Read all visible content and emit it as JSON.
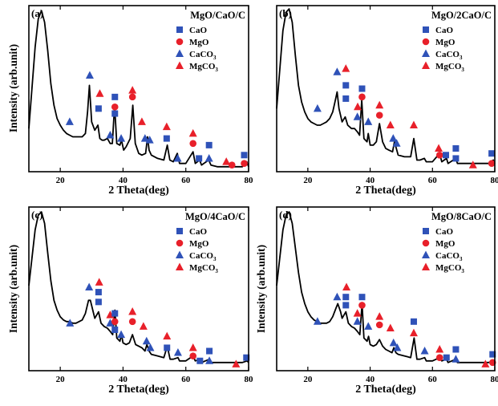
{
  "colors": {
    "CaO": "#2f52b8",
    "MgO": "#e8202a",
    "CaCO3": "#2f52b8",
    "MgCO3": "#e8202a",
    "curve": "#000000"
  },
  "legend": [
    {
      "name": "CaO",
      "sub": "",
      "marker": "square",
      "colorKey": "CaO"
    },
    {
      "name": "MgO",
      "sub": "",
      "marker": "circle",
      "colorKey": "MgO"
    },
    {
      "name": "CaCO",
      "sub": "3",
      "marker": "triangle",
      "colorKey": "CaCO3"
    },
    {
      "name": "MgCO",
      "sub": "3",
      "marker": "triangle",
      "colorKey": "MgCO3"
    }
  ],
  "chart_data": [
    {
      "type": "line",
      "panel": "(a)",
      "title": "MgO/CaO/C",
      "xlabel": "2 Theta(deg)",
      "ylabel": "Intensity (arb.unit)",
      "xlim": [
        10,
        80
      ],
      "ylim": [
        0,
        1
      ],
      "xticks": [
        20,
        40,
        60,
        80
      ],
      "curve": {
        "x": [
          10,
          12,
          13,
          14,
          15,
          16,
          17,
          18,
          19,
          20,
          21,
          22,
          23,
          24,
          25,
          26,
          27,
          28,
          28.7,
          29.3,
          30,
          31,
          32,
          32.6,
          33.3,
          34,
          35,
          35.9,
          36.6,
          37.3,
          38,
          39,
          39.5,
          40.2,
          41,
          42.3,
          43.1,
          43.9,
          45,
          46,
          47.2,
          47.8,
          48.3,
          49,
          51,
          53,
          54.1,
          54.9,
          56,
          57.3,
          58,
          60,
          62.3,
          63,
          64.4,
          65,
          67.3,
          68,
          70,
          72,
          74,
          76,
          78,
          79.4,
          80
        ],
        "y": [
          0.26,
          0.75,
          0.92,
          0.97,
          0.9,
          0.73,
          0.53,
          0.4,
          0.32,
          0.28,
          0.25,
          0.23,
          0.22,
          0.21,
          0.21,
          0.21,
          0.21,
          0.23,
          0.36,
          0.52,
          0.3,
          0.25,
          0.28,
          0.2,
          0.19,
          0.19,
          0.2,
          0.17,
          0.17,
          0.4,
          0.17,
          0.16,
          0.19,
          0.13,
          0.15,
          0.2,
          0.4,
          0.17,
          0.11,
          0.1,
          0.11,
          0.21,
          0.13,
          0.1,
          0.08,
          0.07,
          0.16,
          0.07,
          0.06,
          0.11,
          0.05,
          0.05,
          0.12,
          0.05,
          0.07,
          0.04,
          0.07,
          0.04,
          0.03,
          0.03,
          0.03,
          0.03,
          0.03,
          0.06,
          0.03
        ]
      },
      "markers": [
        {
          "phase": "CaCO3",
          "x": 23.0,
          "y": 0.3
        },
        {
          "phase": "CaCO3",
          "x": 29.4,
          "y": 0.58
        },
        {
          "phase": "CaO",
          "x": 32.2,
          "y": 0.38
        },
        {
          "phase": "MgCO3",
          "x": 32.6,
          "y": 0.47
        },
        {
          "phase": "CaCO3",
          "x": 35.9,
          "y": 0.22
        },
        {
          "phase": "CaO",
          "x": 37.4,
          "y": 0.35
        },
        {
          "phase": "MgO",
          "x": 37.4,
          "y": 0.39
        },
        {
          "phase": "CaO",
          "x": 37.4,
          "y": 0.45
        },
        {
          "phase": "CaCO3",
          "x": 39.4,
          "y": 0.2
        },
        {
          "phase": "MgO",
          "x": 43.0,
          "y": 0.45
        },
        {
          "phase": "MgCO3",
          "x": 43.0,
          "y": 0.49
        },
        {
          "phase": "MgCO3",
          "x": 46.0,
          "y": 0.3
        },
        {
          "phase": "CaCO3",
          "x": 47.0,
          "y": 0.2
        },
        {
          "phase": "CaCO3",
          "x": 48.5,
          "y": 0.19
        },
        {
          "phase": "CaO",
          "x": 53.9,
          "y": 0.2
        },
        {
          "phase": "MgCO3",
          "x": 53.9,
          "y": 0.27
        },
        {
          "phase": "CaCO3",
          "x": 57.4,
          "y": 0.08
        },
        {
          "phase": "MgO",
          "x": 62.3,
          "y": 0.17
        },
        {
          "phase": "MgCO3",
          "x": 62.3,
          "y": 0.23
        },
        {
          "phase": "CaO",
          "x": 64.2,
          "y": 0.08
        },
        {
          "phase": "CaO",
          "x": 67.4,
          "y": 0.16
        },
        {
          "phase": "CaCO3",
          "x": 67.4,
          "y": 0.08
        },
        {
          "phase": "MgCO3",
          "x": 72.9,
          "y": 0.06
        },
        {
          "phase": "MgO",
          "x": 74.7,
          "y": 0.04
        },
        {
          "phase": "MgO",
          "x": 78.6,
          "y": 0.05
        },
        {
          "phase": "CaO",
          "x": 78.6,
          "y": 0.1
        }
      ]
    },
    {
      "type": "line",
      "panel": "(b)",
      "title": "MgO/2CaO/C",
      "xlabel": "2 Theta(deg)",
      "ylabel": "",
      "xlim": [
        10,
        80
      ],
      "ylim": [
        0,
        1
      ],
      "xticks": [
        20,
        40,
        60,
        80
      ],
      "curve": {
        "x": [
          10,
          12,
          13,
          14,
          15,
          16,
          17,
          18,
          19,
          20,
          21,
          22,
          23,
          24,
          25,
          26,
          27,
          28,
          28.7,
          29.4,
          30,
          31,
          32,
          32.8,
          34,
          35,
          35.9,
          36.6,
          37.3,
          38,
          39,
          39.4,
          40,
          41,
          42,
          43,
          44,
          45,
          46,
          47.2,
          47.8,
          48.4,
          49,
          51,
          53,
          54,
          55,
          56,
          57.4,
          58,
          60,
          62.3,
          63,
          64.5,
          65,
          67.5,
          68,
          70,
          72,
          74,
          76,
          78,
          79.5,
          80
        ],
        "y": [
          0.38,
          0.85,
          0.96,
          0.98,
          0.9,
          0.7,
          0.52,
          0.42,
          0.36,
          0.32,
          0.3,
          0.29,
          0.28,
          0.28,
          0.29,
          0.3,
          0.32,
          0.36,
          0.42,
          0.48,
          0.38,
          0.3,
          0.33,
          0.28,
          0.26,
          0.26,
          0.24,
          0.22,
          0.43,
          0.2,
          0.18,
          0.23,
          0.16,
          0.16,
          0.18,
          0.29,
          0.18,
          0.14,
          0.13,
          0.12,
          0.18,
          0.14,
          0.1,
          0.09,
          0.09,
          0.2,
          0.07,
          0.07,
          0.08,
          0.06,
          0.06,
          0.11,
          0.06,
          0.08,
          0.05,
          0.08,
          0.05,
          0.05,
          0.05,
          0.05,
          0.05,
          0.05,
          0.07,
          0.05
        ]
      },
      "markers": [
        {
          "phase": "CaCO3",
          "x": 23.1,
          "y": 0.38
        },
        {
          "phase": "CaCO3",
          "x": 29.4,
          "y": 0.6
        },
        {
          "phase": "CaO",
          "x": 32.2,
          "y": 0.52
        },
        {
          "phase": "CaO",
          "x": 32.2,
          "y": 0.44
        },
        {
          "phase": "MgCO3",
          "x": 32.2,
          "y": 0.62
        },
        {
          "phase": "CaCO3",
          "x": 35.9,
          "y": 0.33
        },
        {
          "phase": "MgCO3",
          "x": 36.0,
          "y": 0.39
        },
        {
          "phase": "CaO",
          "x": 37.4,
          "y": 0.5
        },
        {
          "phase": "MgO",
          "x": 37.4,
          "y": 0.45
        },
        {
          "phase": "CaCO3",
          "x": 39.4,
          "y": 0.3
        },
        {
          "phase": "MgO",
          "x": 43.0,
          "y": 0.34
        },
        {
          "phase": "MgCO3",
          "x": 43.0,
          "y": 0.4
        },
        {
          "phase": "MgCO3",
          "x": 46.5,
          "y": 0.28
        },
        {
          "phase": "CaCO3",
          "x": 47.4,
          "y": 0.2
        },
        {
          "phase": "CaCO3",
          "x": 48.5,
          "y": 0.17
        },
        {
          "phase": "MgCO3",
          "x": 54.0,
          "y": 0.28
        },
        {
          "phase": "MgCO3",
          "x": 62.0,
          "y": 0.14
        },
        {
          "phase": "MgO",
          "x": 62.3,
          "y": 0.1
        },
        {
          "phase": "CaO",
          "x": 64.3,
          "y": 0.1
        },
        {
          "phase": "CaO",
          "x": 67.5,
          "y": 0.14
        },
        {
          "phase": "CaO",
          "x": 67.5,
          "y": 0.08
        },
        {
          "phase": "MgCO3",
          "x": 73.0,
          "y": 0.04
        },
        {
          "phase": "CaO",
          "x": 79.0,
          "y": 0.11
        },
        {
          "phase": "MgO",
          "x": 79.0,
          "y": 0.05
        }
      ]
    },
    {
      "type": "line",
      "panel": "(c)",
      "title": "MgO/4CaO/C",
      "xlabel": "2 Theta(deg)",
      "ylabel": "Intensity (arb.unit)",
      "xlim": [
        10,
        80
      ],
      "ylim": [
        0,
        1
      ],
      "xticks": [
        20,
        40,
        60,
        80
      ],
      "curve": {
        "x": [
          10,
          12,
          13,
          14,
          15,
          16,
          17,
          18,
          19,
          20,
          21,
          22,
          23,
          24,
          25,
          26,
          27,
          28,
          29,
          29.6,
          30.5,
          31,
          32.2,
          33,
          34,
          35,
          35.9,
          36.7,
          37.4,
          38,
          39,
          39.5,
          40,
          41,
          42,
          43,
          44,
          45,
          46,
          47,
          47.6,
          48.3,
          49,
          51,
          53,
          54.1,
          55,
          56,
          57.5,
          58,
          60,
          62.3,
          63,
          64.5,
          65,
          67.5,
          68,
          70,
          72,
          74,
          76,
          78,
          79.5,
          80
        ],
        "y": [
          0.52,
          0.86,
          0.95,
          0.97,
          0.9,
          0.72,
          0.55,
          0.43,
          0.37,
          0.33,
          0.31,
          0.3,
          0.3,
          0.29,
          0.29,
          0.3,
          0.31,
          0.35,
          0.43,
          0.43,
          0.36,
          0.32,
          0.36,
          0.29,
          0.27,
          0.26,
          0.24,
          0.22,
          0.37,
          0.2,
          0.18,
          0.22,
          0.17,
          0.16,
          0.17,
          0.22,
          0.16,
          0.15,
          0.14,
          0.12,
          0.16,
          0.12,
          0.1,
          0.09,
          0.08,
          0.15,
          0.07,
          0.07,
          0.08,
          0.06,
          0.06,
          0.09,
          0.06,
          0.07,
          0.05,
          0.07,
          0.05,
          0.05,
          0.05,
          0.05,
          0.05,
          0.05,
          0.06,
          0.05
        ]
      },
      "markers": [
        {
          "phase": "CaCO3",
          "x": 23.1,
          "y": 0.29
        },
        {
          "phase": "CaCO3",
          "x": 29.2,
          "y": 0.51
        },
        {
          "phase": "CaO",
          "x": 32.2,
          "y": 0.48
        },
        {
          "phase": "CaO",
          "x": 32.2,
          "y": 0.42
        },
        {
          "phase": "MgCO3",
          "x": 32.4,
          "y": 0.54
        },
        {
          "phase": "CaCO3",
          "x": 35.9,
          "y": 0.29
        },
        {
          "phase": "MgCO3",
          "x": 35.9,
          "y": 0.34
        },
        {
          "phase": "CaO",
          "x": 37.4,
          "y": 0.35
        },
        {
          "phase": "MgO",
          "x": 37.4,
          "y": 0.3
        },
        {
          "phase": "CaO",
          "x": 37.4,
          "y": 0.25
        },
        {
          "phase": "CaCO3",
          "x": 39.4,
          "y": 0.22
        },
        {
          "phase": "MgO",
          "x": 43.0,
          "y": 0.3
        },
        {
          "phase": "MgCO3",
          "x": 43.0,
          "y": 0.36
        },
        {
          "phase": "MgCO3",
          "x": 46.5,
          "y": 0.27
        },
        {
          "phase": "CaCO3",
          "x": 47.5,
          "y": 0.18
        },
        {
          "phase": "CaCO3",
          "x": 48.7,
          "y": 0.14
        },
        {
          "phase": "MgCO3",
          "x": 54.0,
          "y": 0.21
        },
        {
          "phase": "CaO",
          "x": 54.0,
          "y": 0.14
        },
        {
          "phase": "CaCO3",
          "x": 57.5,
          "y": 0.11
        },
        {
          "phase": "MgO",
          "x": 62.3,
          "y": 0.09
        },
        {
          "phase": "MgCO3",
          "x": 62.3,
          "y": 0.14
        },
        {
          "phase": "CaO",
          "x": 64.5,
          "y": 0.06
        },
        {
          "phase": "CaO",
          "x": 67.5,
          "y": 0.12
        },
        {
          "phase": "CaCO3",
          "x": 67.5,
          "y": 0.06
        },
        {
          "phase": "MgCO3",
          "x": 76.0,
          "y": 0.04
        },
        {
          "phase": "CaO",
          "x": 79.3,
          "y": 0.08
        }
      ]
    },
    {
      "type": "line",
      "panel": "(d)",
      "title": "MgO/8CaO/C",
      "xlabel": "2 Theta(deg)",
      "ylabel": "Intensity (arb.unit)",
      "xlim": [
        10,
        80
      ],
      "ylim": [
        0,
        1
      ],
      "xticks": [
        20,
        40,
        60,
        80
      ],
      "curve": {
        "x": [
          10,
          12,
          13,
          14,
          15,
          16,
          17,
          18,
          19,
          20,
          21,
          22,
          23,
          24,
          25,
          26,
          27,
          28,
          29,
          29.6,
          30.5,
          31,
          32.2,
          33,
          34,
          35,
          35.9,
          36.7,
          37.4,
          38,
          39,
          39.5,
          40,
          41,
          42,
          43,
          44,
          45,
          46,
          47,
          47.6,
          48.3,
          49,
          51,
          53,
          54.1,
          55,
          56,
          57.5,
          58,
          60,
          62.3,
          63,
          64.5,
          65,
          67.5,
          68,
          70,
          72,
          74,
          76,
          78,
          79.5,
          80
        ],
        "y": [
          0.52,
          0.86,
          0.95,
          0.97,
          0.9,
          0.75,
          0.6,
          0.48,
          0.41,
          0.36,
          0.33,
          0.31,
          0.3,
          0.29,
          0.29,
          0.29,
          0.3,
          0.33,
          0.38,
          0.41,
          0.36,
          0.32,
          0.36,
          0.29,
          0.27,
          0.26,
          0.24,
          0.22,
          0.41,
          0.2,
          0.18,
          0.21,
          0.16,
          0.15,
          0.16,
          0.19,
          0.15,
          0.13,
          0.12,
          0.11,
          0.14,
          0.11,
          0.1,
          0.09,
          0.08,
          0.2,
          0.07,
          0.07,
          0.08,
          0.06,
          0.06,
          0.08,
          0.06,
          0.07,
          0.05,
          0.07,
          0.05,
          0.05,
          0.05,
          0.05,
          0.05,
          0.05,
          0.06,
          0.05
        ]
      },
      "markers": [
        {
          "phase": "CaCO3",
          "x": 23.1,
          "y": 0.3
        },
        {
          "phase": "CaCO3",
          "x": 29.4,
          "y": 0.45
        },
        {
          "phase": "CaO",
          "x": 32.2,
          "y": 0.45
        },
        {
          "phase": "CaO",
          "x": 32.2,
          "y": 0.4
        },
        {
          "phase": "MgCO3",
          "x": 32.4,
          "y": 0.51
        },
        {
          "phase": "CaCO3",
          "x": 35.9,
          "y": 0.3
        },
        {
          "phase": "MgCO3",
          "x": 35.9,
          "y": 0.35
        },
        {
          "phase": "CaO",
          "x": 37.4,
          "y": 0.45
        },
        {
          "phase": "MgO",
          "x": 37.4,
          "y": 0.4
        },
        {
          "phase": "CaCO3",
          "x": 39.4,
          "y": 0.27
        },
        {
          "phase": "MgO",
          "x": 43.0,
          "y": 0.28
        },
        {
          "phase": "MgCO3",
          "x": 43.0,
          "y": 0.33
        },
        {
          "phase": "MgCO3",
          "x": 46.5,
          "y": 0.26
        },
        {
          "phase": "CaCO3",
          "x": 47.5,
          "y": 0.17
        },
        {
          "phase": "CaCO3",
          "x": 48.7,
          "y": 0.14
        },
        {
          "phase": "CaO",
          "x": 54.0,
          "y": 0.3
        },
        {
          "phase": "MgCO3",
          "x": 54.0,
          "y": 0.23
        },
        {
          "phase": "CaCO3",
          "x": 57.5,
          "y": 0.12
        },
        {
          "phase": "MgO",
          "x": 62.3,
          "y": 0.08
        },
        {
          "phase": "MgCO3",
          "x": 62.3,
          "y": 0.13
        },
        {
          "phase": "CaO",
          "x": 64.5,
          "y": 0.08
        },
        {
          "phase": "CaO",
          "x": 67.5,
          "y": 0.13
        },
        {
          "phase": "CaCO3",
          "x": 67.5,
          "y": 0.07
        },
        {
          "phase": "MgCO3",
          "x": 77.0,
          "y": 0.04
        },
        {
          "phase": "MgO",
          "x": 79.3,
          "y": 0.05
        },
        {
          "phase": "CaO",
          "x": 79.3,
          "y": 0.1
        }
      ]
    }
  ]
}
